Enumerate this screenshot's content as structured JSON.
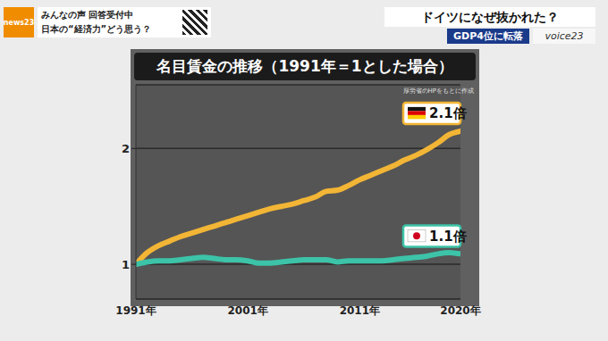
{
  "chart_data": {
    "type": "line",
    "title": "名目賃金の推移（1991年＝1とした場合）",
    "source": "厚労省のHPをもとに作成",
    "x": [
      1991,
      1992,
      1993,
      1994,
      1995,
      1996,
      1997,
      1998,
      1999,
      2000,
      2001,
      2002,
      2003,
      2004,
      2005,
      2006,
      2007,
      2008,
      2009,
      2010,
      2011,
      2012,
      2013,
      2014,
      2015,
      2016,
      2017,
      2018,
      2019,
      2020
    ],
    "series": [
      {
        "color": "#f2b535",
        "values": [
          1.0,
          1.1,
          1.16,
          1.2,
          1.24,
          1.27,
          1.3,
          1.33,
          1.36,
          1.39,
          1.42,
          1.45,
          1.48,
          1.5,
          1.52,
          1.55,
          1.58,
          1.63,
          1.64,
          1.68,
          1.73,
          1.77,
          1.81,
          1.85,
          1.9,
          1.94,
          1.99,
          2.05,
          2.12,
          2.15
        ]
      },
      {
        "color": "#3cc3a8",
        "values": [
          1.0,
          1.02,
          1.03,
          1.03,
          1.04,
          1.05,
          1.06,
          1.05,
          1.04,
          1.04,
          1.03,
          1.01,
          1.01,
          1.02,
          1.03,
          1.04,
          1.04,
          1.04,
          1.02,
          1.03,
          1.03,
          1.03,
          1.03,
          1.04,
          1.05,
          1.06,
          1.07,
          1.09,
          1.1,
          1.09
        ]
      }
    ],
    "xlim": [
      1991,
      2020
    ],
    "xticks": [
      {
        "value": 1991,
        "label": "1991年"
      },
      {
        "value": 2001,
        "label": "2001年"
      },
      {
        "value": 2011,
        "label": "2011年"
      },
      {
        "value": 2020,
        "label": "2020年"
      }
    ],
    "ylim": [
      0.7,
      2.55
    ],
    "yticks": [
      1,
      2
    ],
    "grid": true,
    "annotations": [
      {
        "text": "2.1倍",
        "series": 0
      },
      {
        "text": "1.1倍",
        "series": 1
      }
    ]
  },
  "header": {
    "logo": "news23",
    "left": [
      "みんなの声 回答受付中",
      "日本の“経済力”どう思う？"
    ],
    "right": [
      "ドイツになぜ抜かれた？",
      "GDP4位に転落",
      "voice23"
    ]
  }
}
